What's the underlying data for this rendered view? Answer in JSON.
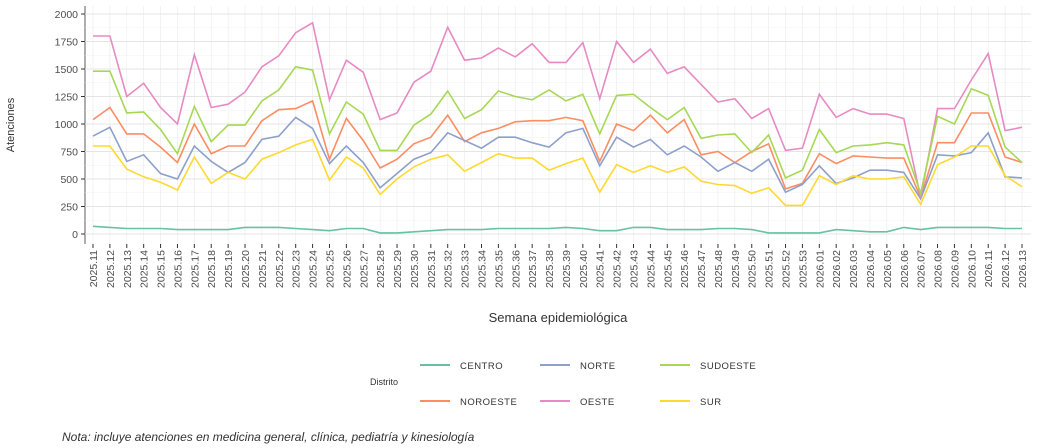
{
  "chart_data": {
    "type": "line",
    "x_label": "Semana epidemiológica",
    "y_label": "Atenciones",
    "legend_title": "Distrito",
    "note": "Nota: incluye atenciones en medicina general, clínica, pediatría y kinesiología",
    "categories": [
      "2025.11",
      "2025.12",
      "2025.13",
      "2025.14",
      "2025.15",
      "2025.16",
      "2025.17",
      "2025.18",
      "2025.19",
      "2025.20",
      "2025.21",
      "2025.22",
      "2025.23",
      "2025.24",
      "2025.25",
      "2025.26",
      "2025.27",
      "2025.28",
      "2025.29",
      "2025.30",
      "2025.31",
      "2025.32",
      "2025.33",
      "2025.34",
      "2025.35",
      "2025.36",
      "2025.37",
      "2025.38",
      "2025.39",
      "2025.40",
      "2025.41",
      "2025.42",
      "2025.43",
      "2025.44",
      "2025.45",
      "2025.46",
      "2025.47",
      "2025.48",
      "2025.49",
      "2025.50",
      "2025.51",
      "2025.52",
      "2025.53",
      "2026.01",
      "2026.02",
      "2026.03",
      "2026.04",
      "2026.05",
      "2026.06",
      "2026.07",
      "2026.08",
      "2026.09",
      "2026.10",
      "2026.11",
      "2026.12",
      "2026.13"
    ],
    "series": [
      {
        "name": "CENTRO",
        "color": "#66c2a5",
        "values": [
          70,
          60,
          50,
          50,
          50,
          40,
          40,
          40,
          40,
          60,
          60,
          60,
          50,
          40,
          30,
          50,
          50,
          10,
          10,
          20,
          30,
          40,
          40,
          40,
          50,
          50,
          50,
          50,
          60,
          50,
          30,
          30,
          60,
          60,
          40,
          40,
          40,
          50,
          50,
          40,
          10,
          10,
          10,
          10,
          40,
          30,
          20,
          20,
          60,
          40,
          60,
          60,
          60,
          60,
          50,
          50
        ]
      },
      {
        "name": "NOROESTE",
        "color": "#fc8d62",
        "values": [
          1040,
          1150,
          910,
          910,
          790,
          650,
          1000,
          730,
          800,
          800,
          1030,
          1130,
          1140,
          1210,
          680,
          1050,
          850,
          600,
          680,
          820,
          880,
          1080,
          840,
          920,
          960,
          1020,
          1030,
          1030,
          1060,
          1030,
          660,
          1000,
          940,
          1080,
          920,
          1040,
          720,
          750,
          650,
          750,
          820,
          410,
          460,
          730,
          640,
          710,
          700,
          690,
          690,
          330,
          830,
          830,
          1100,
          1100,
          700,
          650
        ]
      },
      {
        "name": "NORTE",
        "color": "#8da0cb",
        "values": [
          890,
          970,
          660,
          720,
          550,
          500,
          800,
          660,
          560,
          650,
          860,
          890,
          1060,
          960,
          640,
          800,
          650,
          420,
          550,
          680,
          740,
          920,
          850,
          780,
          880,
          880,
          830,
          790,
          920,
          960,
          620,
          880,
          790,
          860,
          720,
          800,
          700,
          570,
          650,
          570,
          680,
          380,
          450,
          620,
          460,
          510,
          580,
          580,
          560,
          320,
          720,
          710,
          740,
          920,
          520,
          510
        ]
      },
      {
        "name": "OESTE",
        "color": "#e78ac3",
        "values": [
          1800,
          1800,
          1250,
          1370,
          1150,
          1000,
          1630,
          1150,
          1180,
          1290,
          1520,
          1620,
          1830,
          1920,
          1220,
          1580,
          1470,
          1040,
          1100,
          1380,
          1480,
          1880,
          1580,
          1600,
          1690,
          1610,
          1730,
          1560,
          1560,
          1740,
          1230,
          1750,
          1560,
          1680,
          1460,
          1520,
          1360,
          1200,
          1230,
          1050,
          1140,
          760,
          780,
          1270,
          1060,
          1140,
          1090,
          1090,
          1050,
          330,
          1140,
          1140,
          1400,
          1640,
          940,
          970
        ]
      },
      {
        "name": "SUDOESTE",
        "color": "#a6d854",
        "values": [
          1480,
          1480,
          1100,
          1110,
          950,
          730,
          1160,
          840,
          990,
          990,
          1210,
          1310,
          1520,
          1490,
          910,
          1200,
          1090,
          760,
          760,
          990,
          1090,
          1300,
          1050,
          1130,
          1300,
          1250,
          1220,
          1310,
          1210,
          1270,
          910,
          1260,
          1270,
          1150,
          1040,
          1150,
          870,
          900,
          910,
          740,
          900,
          510,
          580,
          950,
          740,
          800,
          810,
          830,
          810,
          370,
          1070,
          1000,
          1320,
          1260,
          790,
          650
        ]
      },
      {
        "name": "SUR",
        "color": "#ffd92f",
        "values": [
          800,
          800,
          590,
          520,
          470,
          400,
          700,
          460,
          560,
          500,
          680,
          740,
          810,
          860,
          490,
          700,
          600,
          360,
          500,
          610,
          680,
          720,
          570,
          650,
          730,
          690,
          690,
          580,
          640,
          690,
          380,
          630,
          560,
          620,
          560,
          610,
          480,
          450,
          440,
          370,
          420,
          260,
          260,
          530,
          450,
          530,
          500,
          500,
          520,
          270,
          630,
          700,
          800,
          800,
          530,
          430
        ]
      }
    ],
    "ylim": [
      0,
      2000
    ],
    "yticks": [
      0,
      250,
      500,
      750,
      1000,
      1250,
      1500,
      1750,
      2000
    ],
    "grid": true
  }
}
